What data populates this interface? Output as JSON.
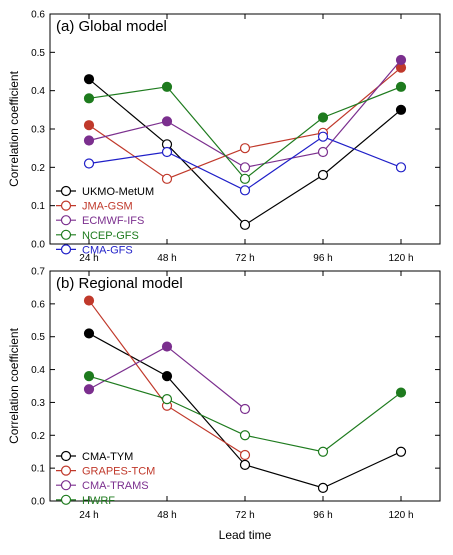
{
  "chart_data": [
    {
      "type": "line",
      "title": "(a) Global model",
      "xlabel": "",
      "ylabel": "Correlation coefficient",
      "categories": [
        "24 h",
        "48 h",
        "72 h",
        "96 h",
        "120 h"
      ],
      "ylim": [
        0,
        0.6
      ],
      "yticks": [
        "0.0",
        "0.1",
        "0.2",
        "0.3",
        "0.4",
        "0.5",
        "0.6"
      ],
      "legend_position": "bottom-left",
      "grid": false,
      "series": [
        {
          "name": "UKMO-MetUM",
          "color": "#000000",
          "values": [
            0.43,
            0.26,
            0.05,
            0.18,
            0.35
          ],
          "filled": [
            true,
            false,
            false,
            false,
            true
          ]
        },
        {
          "name": "JMA-GSM",
          "color": "#c0392b",
          "values": [
            0.31,
            0.17,
            0.25,
            0.29,
            0.46
          ],
          "filled": [
            true,
            false,
            false,
            false,
            true
          ]
        },
        {
          "name": "ECMWF-IFS",
          "color": "#7b2f8e",
          "values": [
            0.27,
            0.32,
            0.2,
            0.24,
            0.48
          ],
          "filled": [
            true,
            true,
            false,
            false,
            true
          ]
        },
        {
          "name": "NCEP-GFS",
          "color": "#1e7b1e",
          "values": [
            0.38,
            0.41,
            0.17,
            0.33,
            0.41
          ],
          "filled": [
            true,
            true,
            false,
            true,
            true
          ]
        },
        {
          "name": "CMA-GFS",
          "color": "#1f1fc8",
          "values": [
            0.21,
            0.24,
            0.14,
            0.28,
            0.2
          ],
          "filled": [
            false,
            false,
            false,
            false,
            false
          ]
        }
      ]
    },
    {
      "type": "line",
      "title": "(b) Regional model",
      "xlabel": "Lead time",
      "ylabel": "Correlation coefficient",
      "categories": [
        "24 h",
        "48 h",
        "72 h",
        "96 h",
        "120 h"
      ],
      "ylim": [
        0,
        0.7
      ],
      "yticks": [
        "0.0",
        "0.1",
        "0.2",
        "0.3",
        "0.4",
        "0.5",
        "0.6",
        "0.7"
      ],
      "legend_position": "bottom-left",
      "grid": false,
      "series": [
        {
          "name": "CMA-TYM",
          "color": "#000000",
          "values": [
            0.51,
            0.38,
            0.11,
            0.04,
            0.15
          ],
          "filled": [
            true,
            true,
            false,
            false,
            false
          ]
        },
        {
          "name": "GRAPES-TCM",
          "color": "#c0392b",
          "values": [
            0.61,
            0.29,
            0.14,
            null,
            null
          ],
          "filled": [
            true,
            false,
            false,
            false,
            false
          ]
        },
        {
          "name": "CMA-TRAMS",
          "color": "#7b2f8e",
          "values": [
            0.34,
            0.47,
            0.28,
            null,
            null
          ],
          "filled": [
            true,
            true,
            false,
            false,
            false
          ]
        },
        {
          "name": "HWRF",
          "color": "#1e7b1e",
          "values": [
            0.38,
            0.31,
            0.2,
            0.15,
            0.33
          ],
          "filled": [
            true,
            false,
            false,
            false,
            true
          ]
        }
      ]
    }
  ]
}
